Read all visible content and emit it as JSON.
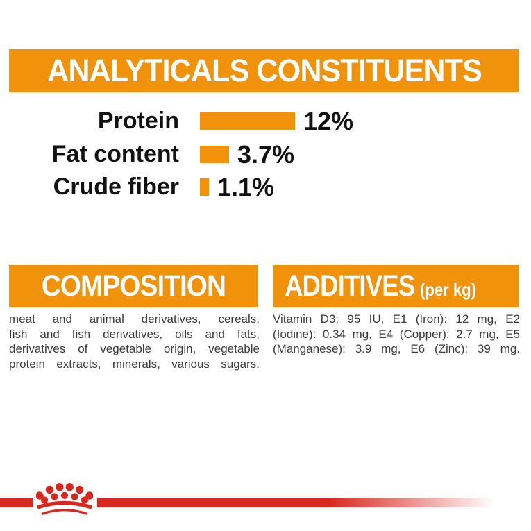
{
  "colors": {
    "orange": "#F0920A",
    "red": "#D8271E",
    "heading_text": "#FFFFFF",
    "label_text": "#111111",
    "body_text": "#3C3C3B"
  },
  "header": {
    "title": "ANALYTICALS CONSTITUENTS"
  },
  "chart_data": {
    "type": "bar",
    "orientation": "horizontal",
    "title": "ANALYTICALS CONSTITUENTS",
    "categories": [
      "Protein",
      "Fat content",
      "Crude fiber"
    ],
    "values": [
      12,
      3.7,
      1.1
    ],
    "value_labels": [
      "12%",
      "3.7%",
      "1.1%"
    ],
    "unit": "percent",
    "xlim": [
      0,
      12
    ],
    "bar_color": "#F0920A",
    "grid": false,
    "legend": false
  },
  "composition": {
    "title": "COMPOSITION",
    "lines": [
      "meat and animal derivatives, cereals,",
      "fish and fish derivatives, oils and fats,",
      "derivatives of vegetable origin, vegetable",
      "protein extracts, minerals, various sugars."
    ]
  },
  "additives": {
    "title": "ADDITIVES",
    "suffix": "(per kg)",
    "lines": [
      "Vitamin D3: 95 IU, E1 (Iron): 12 mg, E2",
      "(Iodine): 0.34 mg, E4 (Copper): 2.7 mg, E5",
      "(Manganese): 3.9 mg, E6 (Zinc): 39 mg."
    ]
  },
  "footer": {
    "brand_icon": "royal-canin-crown"
  }
}
